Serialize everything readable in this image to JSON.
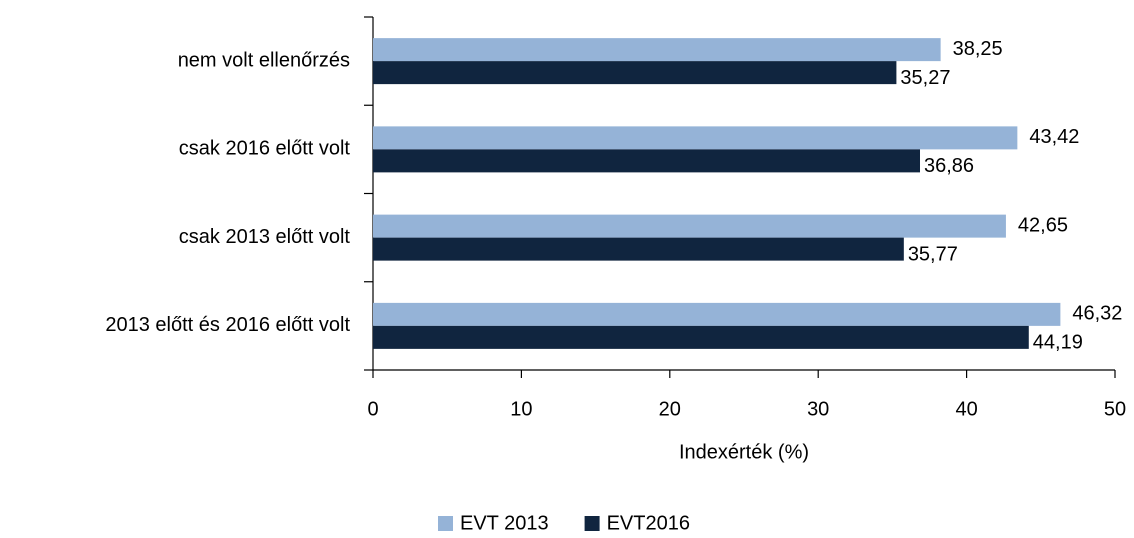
{
  "chart_data": {
    "type": "bar",
    "orientation": "horizontal",
    "categories": [
      "nem volt ellenőrzés",
      "csak 2016 előtt volt",
      "csak 2013 előtt volt",
      "2013 előtt és 2016 előtt volt"
    ],
    "series": [
      {
        "name": "EVT 2013",
        "color": "#95b3d7",
        "values": [
          38.25,
          43.42,
          42.65,
          46.32
        ],
        "value_labels": [
          "38,25",
          "43,42",
          "42,65",
          "46,32"
        ]
      },
      {
        "name": "EVT2016",
        "color": "#10253f",
        "values": [
          35.27,
          36.86,
          35.77,
          44.19
        ],
        "value_labels": [
          "35,27",
          "36,86",
          "35,77",
          "44,19"
        ]
      }
    ],
    "xlabel": "Indexérték (%)",
    "xlim": [
      0,
      50
    ],
    "xticks": [
      0,
      10,
      20,
      30,
      40,
      50
    ],
    "grid": false,
    "legend": "bottom"
  }
}
